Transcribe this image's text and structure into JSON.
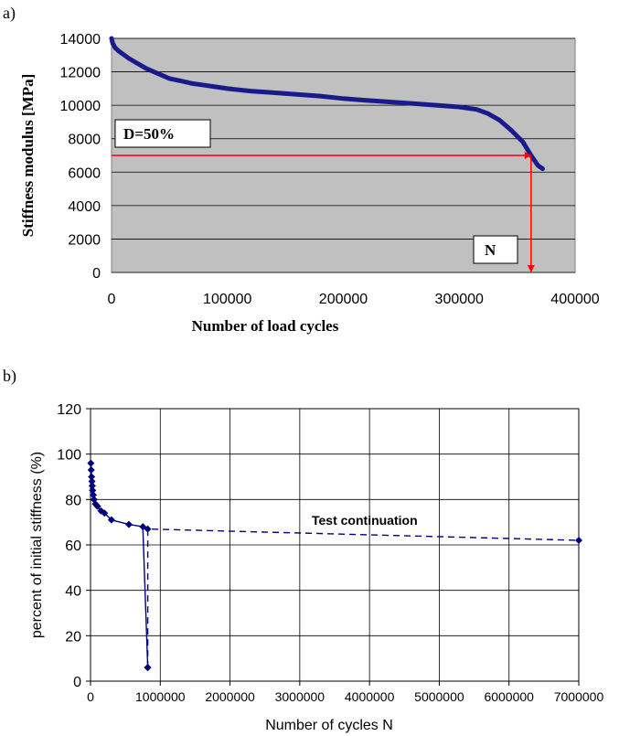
{
  "chart_data": [
    {
      "panel": "a)",
      "type": "line",
      "title": "",
      "xlabel": "Number of load cycles",
      "ylabel": "Stiffness modulus [MPa]",
      "xlim": [
        0,
        400000
      ],
      "ylim": [
        0,
        14000
      ],
      "x_ticks": [
        "0",
        "100000",
        "200000",
        "300000",
        "400000"
      ],
      "y_ticks": [
        "0",
        "2000",
        "4000",
        "6000",
        "8000",
        "10000",
        "12000",
        "14000"
      ],
      "grid": true,
      "plot_background": "#c0c0c0",
      "series": [
        {
          "color": "#1a1a8c",
          "points": [
            [
              0,
              14000
            ],
            [
              1000,
              13700
            ],
            [
              3000,
              13450
            ],
            [
              6000,
              13250
            ],
            [
              10000,
              13050
            ],
            [
              15000,
              12800
            ],
            [
              20000,
              12600
            ],
            [
              25000,
              12400
            ],
            [
              30000,
              12200
            ],
            [
              40000,
              11900
            ],
            [
              50000,
              11600
            ],
            [
              60000,
              11450
            ],
            [
              70000,
              11300
            ],
            [
              80000,
              11200
            ],
            [
              90000,
              11100
            ],
            [
              100000,
              11000
            ],
            [
              120000,
              10850
            ],
            [
              140000,
              10750
            ],
            [
              160000,
              10650
            ],
            [
              180000,
              10550
            ],
            [
              200000,
              10400
            ],
            [
              220000,
              10300
            ],
            [
              240000,
              10200
            ],
            [
              260000,
              10100
            ],
            [
              280000,
              10000
            ],
            [
              300000,
              9900
            ],
            [
              315000,
              9750
            ],
            [
              325000,
              9500
            ],
            [
              335000,
              9100
            ],
            [
              345000,
              8500
            ],
            [
              355000,
              7800
            ],
            [
              362000,
              7000
            ],
            [
              368000,
              6400
            ],
            [
              372000,
              6200
            ]
          ]
        }
      ],
      "annotations": {
        "damage_label": "D=50%",
        "n_label": "N",
        "threshold_y": 7000,
        "threshold_x": 362000,
        "marker_color": "#ff0000"
      }
    },
    {
      "panel": "b)",
      "type": "line",
      "title": "",
      "xlabel": "Number of cycles N",
      "ylabel": "percent of initial stiffness (%)",
      "xlim": [
        0,
        7000000
      ],
      "ylim": [
        0,
        120
      ],
      "x_ticks": [
        "0",
        "1000000",
        "2000000",
        "3000000",
        "4000000",
        "5000000",
        "6000000",
        "7000000"
      ],
      "y_ticks": [
        "0",
        "20",
        "40",
        "60",
        "80",
        "100",
        "120"
      ],
      "grid": true,
      "plot_background": "#ffffff",
      "annotation": "Test continuation",
      "series": [
        {
          "style": "solid",
          "color": "#00007f",
          "points": [
            [
              5000,
              96
            ],
            [
              10000,
              93
            ],
            [
              15000,
              90
            ],
            [
              20000,
              88
            ],
            [
              25000,
              86
            ],
            [
              30000,
              84
            ],
            [
              40000,
              82
            ],
            [
              50000,
              80
            ],
            [
              70000,
              78
            ],
            [
              100000,
              77
            ],
            [
              150000,
              75
            ],
            [
              200000,
              74
            ],
            [
              300000,
              71
            ],
            [
              550000,
              69
            ],
            [
              750000,
              68
            ],
            [
              820000,
              6
            ]
          ]
        },
        {
          "style": "dashed",
          "color": "#00007f",
          "points": [
            [
              820000,
              6
            ],
            [
              820000,
              67
            ],
            [
              7000000,
              62
            ]
          ]
        }
      ]
    }
  ]
}
